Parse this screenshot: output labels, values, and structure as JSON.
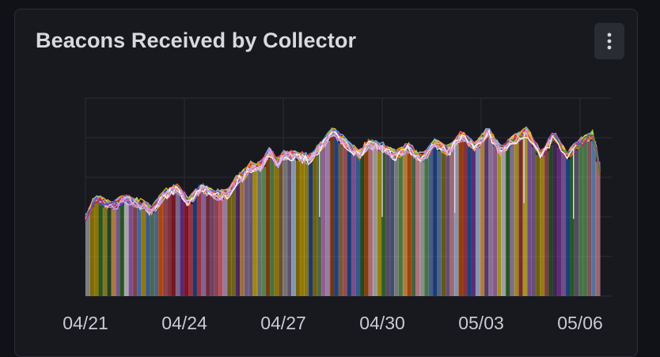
{
  "panel": {
    "title": "Beacons Received by Collector",
    "menu_icon": "kebab-menu-icon"
  },
  "colors": {
    "background": "#111217",
    "panel": "#18191e",
    "grid": "#2b2d33",
    "tick_text": "#c9cbd2"
  },
  "chart_data": {
    "type": "area",
    "stacked": false,
    "title": "",
    "xlabel": "",
    "ylabel": "",
    "x_tick_labels": [
      "04/21",
      "04/24",
      "04/27",
      "04/30",
      "05/03",
      "05/06"
    ],
    "x_range": [
      "04/21",
      "05/07"
    ],
    "y_range": [
      0,
      5
    ],
    "y_tick_labels_visible": false,
    "grid": true,
    "legend": "none",
    "series_count_estimate": "many (~30 collectors, overlapping)",
    "envelope": {
      "x_days_from_first_tick": [
        0,
        0.3,
        0.8,
        1.2,
        1.6,
        2.0,
        2.4,
        2.8,
        3.1,
        3.5,
        3.9,
        4.3,
        4.6,
        4.8,
        5.0,
        5.3,
        5.6,
        5.8,
        6.0,
        6.4,
        6.8,
        7.1,
        7.5,
        7.9,
        8.3,
        8.6,
        9.0,
        9.4,
        9.8,
        10.2,
        10.6,
        11.0,
        11.4,
        11.8,
        12.2,
        12.6,
        13.0,
        13.4,
        13.8,
        14.2,
        14.6,
        15.0,
        15.4,
        15.6
      ],
      "values": [
        2.0,
        2.5,
        2.3,
        2.5,
        2.4,
        2.2,
        2.6,
        2.8,
        2.4,
        2.8,
        2.6,
        2.6,
        3.0,
        3.1,
        3.3,
        3.3,
        3.7,
        3.4,
        3.6,
        3.6,
        3.5,
        3.8,
        4.2,
        3.9,
        3.6,
        3.9,
        3.8,
        3.6,
        3.8,
        3.5,
        3.9,
        3.7,
        4.1,
        3.8,
        4.2,
        3.7,
        4.0,
        4.2,
        3.6,
        4.1,
        3.6,
        3.9,
        4.1,
        3.2
      ]
    },
    "series_colors": [
      "#f2cc0c",
      "#8ab8ff",
      "#ca95e5",
      "#ff7383",
      "#73bf69",
      "#fade2a",
      "#5794f2",
      "#b877d9",
      "#f2495c",
      "#96d98d",
      "#ffb357",
      "#c4162a",
      "#1f60c4",
      "#8f3bb8",
      "#fa6400",
      "#37872d",
      "#e0b400",
      "#ffa6b0",
      "#c0d8ff",
      "#deb6f2",
      "#ffffff",
      "#d683ce"
    ]
  }
}
